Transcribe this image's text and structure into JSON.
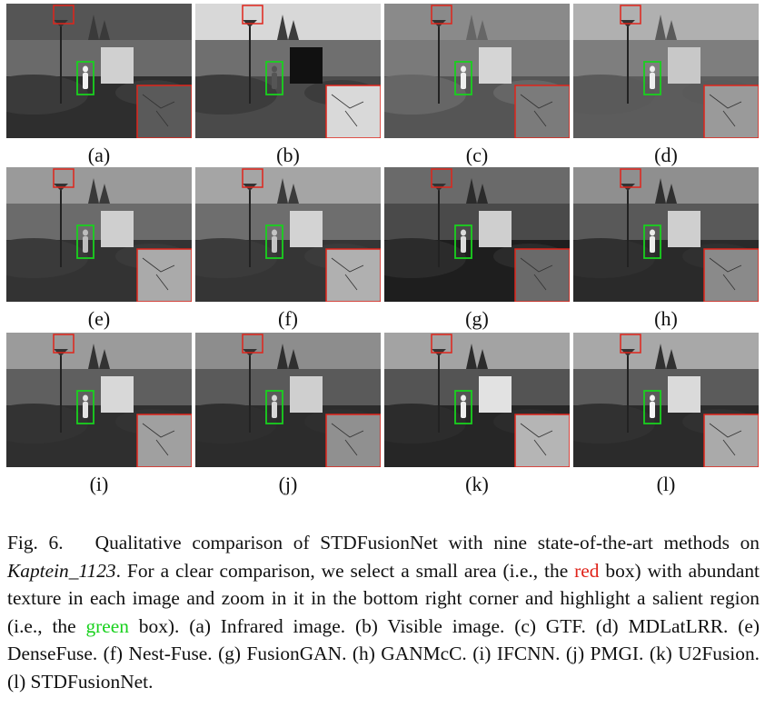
{
  "panels": [
    {
      "label": "(a)"
    },
    {
      "label": "(b)"
    },
    {
      "label": "(c)"
    },
    {
      "label": "(d)"
    },
    {
      "label": "(e)"
    },
    {
      "label": "(f)"
    },
    {
      "label": "(g)"
    },
    {
      "label": "(h)"
    },
    {
      "label": "(i)"
    },
    {
      "label": "(j)"
    },
    {
      "label": "(k)"
    },
    {
      "label": "(l)"
    }
  ],
  "caption": {
    "figure_number": "Fig. 6.",
    "part1": "Qualitative comparison of STDFusionNet with nine state-of-the-art methods on ",
    "dataset": "Kaptein_1123",
    "part2": ". For a clear comparison, we select a small area (i.e., the ",
    "red_word": "red",
    "part3": " box) with abundant texture in each image and zoom in it in the bottom right corner and highlight a salient region (i.e., the ",
    "green_word": "green",
    "part4": " box). (a) Infrared image. (b) Visible image. (c) GTF. (d) MDLatLRR. (e) DenseFuse. (f) Nest-Fuse. (g) FusionGAN. (h) GANMcC. (i) IFCNN. (j) PMGI. (k) U2Fusion. (l) STDFusionNet."
  },
  "colors": {
    "red_box": "#e0241b",
    "green_box": "#19d11e"
  }
}
